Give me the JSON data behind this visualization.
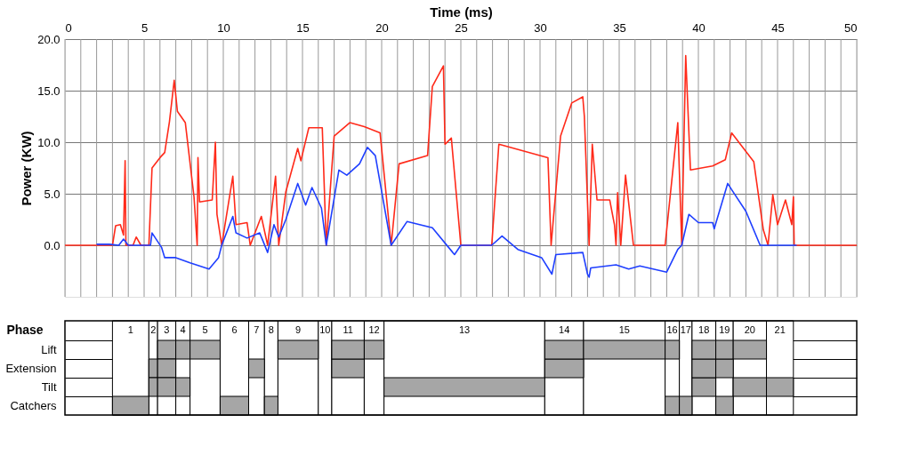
{
  "chart_data": [
    {
      "type": "line",
      "xlabel": "Time (ms)",
      "ylabel": "Power (KW)",
      "xlim": [
        0,
        50
      ],
      "ylim": [
        -5,
        20
      ],
      "grid": true,
      "xticks": [
        0,
        {
          "value": 1,
          "label": null
        },
        {
          "value": 2,
          "label": null
        },
        {
          "value": 3,
          "label": null
        },
        {
          "value": 4,
          "label": null
        },
        5,
        {
          "value": 6,
          "label": null
        },
        {
          "value": 7,
          "label": null
        },
        {
          "value": 8,
          "label": null
        },
        {
          "value": 9,
          "label": null
        },
        10,
        {
          "value": 11,
          "label": null
        },
        {
          "value": 12,
          "label": null
        },
        {
          "value": 13,
          "label": null
        },
        {
          "value": 14,
          "label": null
        },
        15,
        {
          "value": 16,
          "label": null
        },
        {
          "value": 17,
          "label": null
        },
        {
          "value": 18,
          "label": null
        },
        {
          "value": 19,
          "label": null
        },
        20,
        {
          "value": 21,
          "label": null
        },
        {
          "value": 22,
          "label": null
        },
        {
          "value": 23,
          "label": null
        },
        {
          "value": 24,
          "label": null
        },
        25,
        {
          "value": 26,
          "label": null
        },
        {
          "value": 27,
          "label": null
        },
        {
          "value": 28,
          "label": null
        },
        {
          "value": 29,
          "label": null
        },
        30,
        {
          "value": 31,
          "label": null
        },
        {
          "value": 32,
          "label": null
        },
        {
          "value": 33,
          "label": null
        },
        {
          "value": 34,
          "label": null
        },
        35,
        {
          "value": 36,
          "label": null
        },
        {
          "value": 37,
          "label": null
        },
        {
          "value": 38,
          "label": null
        },
        {
          "value": 39,
          "label": null
        },
        40,
        {
          "value": 41,
          "label": null
        },
        {
          "value": 42,
          "label": null
        },
        {
          "value": 43,
          "label": null
        },
        {
          "value": 44,
          "label": null
        },
        45,
        {
          "value": 46,
          "label": null
        },
        {
          "value": 47,
          "label": null
        },
        {
          "value": 48,
          "label": null
        },
        {
          "value": 49,
          "label": null
        },
        50
      ],
      "yticks": [
        {
          "value": 0,
          "label": "0.0"
        },
        {
          "value": 5,
          "label": "5.0"
        },
        {
          "value": 10,
          "label": "10.0"
        },
        {
          "value": 15,
          "label": "15.0"
        },
        {
          "value": 20,
          "label": "20.0"
        }
      ],
      "series": [
        {
          "color": "#ff2a1a",
          "x": [
            0,
            3.0,
            3.2,
            3.5,
            3.7,
            3.8,
            3.85,
            4.3,
            4.5,
            4.8,
            5.3,
            5.5,
            6.0,
            6.3,
            6.6,
            6.9,
            7.1,
            7.6,
            8.15,
            8.35,
            8.4,
            8.5,
            9.3,
            9.5,
            9.6,
            9.9,
            10.6,
            10.8,
            11.5,
            11.7,
            12.4,
            12.8,
            13.3,
            13.5,
            13.95,
            14.7,
            14.9,
            15.4,
            16.25,
            16.5,
            17.0,
            18.0,
            18.9,
            19.9,
            20.6,
            21.1,
            22.9,
            23.2,
            23.9,
            24.0,
            24.4,
            25.0,
            26.95,
            27.4,
            30.5,
            30.7,
            31.3,
            32.0,
            32.7,
            32.8,
            33.1,
            33.3,
            33.6,
            34.4,
            34.7,
            34.8,
            34.9,
            35.1,
            35.4,
            35.9,
            37.9,
            38.1,
            38.7,
            38.95,
            39.2,
            39.5,
            40.9,
            41.7,
            42.1,
            43.5,
            44.1,
            44.4,
            44.7,
            45.0,
            45.5,
            45.9,
            46.0,
            46.05,
            50
          ],
          "values": [
            0,
            0,
            1.9,
            2.0,
            1.0,
            8.2,
            0,
            0,
            0.8,
            0,
            0,
            7.5,
            8.5,
            9.0,
            12.0,
            16.0,
            13.0,
            11.9,
            4.7,
            0,
            8.5,
            4.2,
            4.4,
            10.0,
            3.0,
            0,
            6.7,
            2.0,
            2.2,
            0,
            2.8,
            0,
            6.7,
            0,
            5.2,
            9.4,
            8.2,
            11.4,
            11.4,
            0,
            10.6,
            11.9,
            11.5,
            10.9,
            0,
            7.9,
            8.7,
            15.4,
            17.4,
            9.8,
            10.4,
            0,
            0,
            9.8,
            8.5,
            0,
            10.6,
            13.8,
            14.4,
            12.5,
            0,
            9.8,
            4.4,
            4.4,
            2.0,
            0,
            5.1,
            0,
            6.8,
            0,
            0,
            3.0,
            11.9,
            0,
            18.4,
            7.3,
            7.7,
            8.3,
            10.9,
            8.1,
            1.5,
            0,
            4.9,
            2.0,
            4.4,
            2.0,
            4.7,
            0,
            0
          ]
        },
        {
          "color": "#1f3fff",
          "x": [
            2.0,
            2.8,
            3.4,
            3.7,
            4.0,
            5.4,
            5.5,
            6.1,
            6.3,
            7.0,
            7.9,
            9.1,
            9.7,
            9.9,
            10.6,
            10.8,
            11.5,
            12.3,
            12.8,
            13.2,
            13.5,
            13.95,
            14.7,
            15.2,
            15.6,
            16.2,
            16.5,
            17.3,
            17.8,
            18.6,
            19.1,
            19.6,
            20.6,
            21.6,
            23.2,
            24.6,
            25.0,
            26.95,
            27.6,
            28.6,
            30.1,
            30.75,
            31.0,
            32.7,
            33.0,
            33.1,
            33.2,
            34.8,
            35.6,
            36.3,
            38.0,
            38.7,
            38.95,
            39.4,
            40.0,
            40.9,
            41.0,
            41.85,
            42.1,
            43.0,
            43.9,
            46.2
          ],
          "values": [
            0.1,
            0.1,
            0,
            0.6,
            0,
            0,
            1.2,
            -0.2,
            -1.2,
            -1.2,
            -1.7,
            -2.3,
            -1.2,
            0,
            2.8,
            1.2,
            0.7,
            1.2,
            -0.7,
            2.0,
            0.8,
            2.5,
            6.0,
            3.9,
            5.6,
            3.6,
            0,
            7.3,
            6.8,
            7.9,
            9.5,
            8.7,
            0,
            2.3,
            1.7,
            -0.9,
            0,
            0,
            0.9,
            -0.4,
            -1.2,
            -2.8,
            -0.9,
            -0.7,
            -2.8,
            -3.1,
            -2.2,
            -1.9,
            -2.3,
            -2.0,
            -2.6,
            -0.4,
            0,
            3.0,
            2.2,
            2.2,
            1.6,
            6.0,
            5.4,
            3.3,
            0,
            0
          ]
        }
      ]
    },
    {
      "type": "bar",
      "orientation": "horizontal",
      "xlabel": "Phase",
      "tick_labels": "y",
      "xlim": [
        0,
        50
      ],
      "categories": [
        "Lift",
        "Extension",
        "Tilt",
        "Catchers"
      ],
      "series": [
        {
          "color": "#a6a6a6",
          "values": [
            1.15,
            0.55,
            0.55,
            2.3
          ],
          "base": [
            5.85,
            5.3,
            5.3,
            3.0
          ]
        },
        {
          "color": "#a6a6a6",
          "values": [
            0.9,
            1.15,
            1.15,
            1.8
          ],
          "base": [
            7.0,
            5.85,
            5.85,
            9.8
          ]
        },
        {
          "color": "#a6a6a6",
          "values": [
            1.9,
            1.0,
            0.9,
            0.85
          ],
          "base": [
            7.9,
            11.6,
            7.0,
            12.6
          ]
        },
        {
          "color": "#a6a6a6",
          "values": [
            2.55,
            2.05,
            10.15,
            0.9
          ],
          "base": [
            13.45,
            16.85,
            20.15,
            37.9
          ]
        },
        {
          "color": "#a6a6a6",
          "values": [
            2.05,
            2.45,
            1.5,
            0.8
          ],
          "base": [
            16.85,
            30.3,
            39.6,
            38.8
          ]
        },
        {
          "color": "#a6a6a6",
          "values": [
            1.25,
            1.5,
            2.1,
            1.1
          ],
          "base": [
            18.9,
            39.6,
            42.2,
            41.1
          ]
        },
        {
          "color": "#a6a6a6",
          "values": [
            2.45,
            1.1,
            1.7,
            null
          ],
          "base": [
            30.3,
            41.1,
            44.3,
            null
          ]
        },
        {
          "color": "#a6a6a6",
          "values": [
            5.15,
            null,
            null,
            null
          ],
          "base": [
            32.75,
            null,
            null,
            null
          ]
        },
        {
          "color": "#a6a6a6",
          "values": [
            0.9,
            null,
            null,
            null
          ],
          "base": [
            37.9,
            null,
            null,
            null
          ]
        },
        {
          "color": "#a6a6a6",
          "values": [
            1.5,
            null,
            null,
            null
          ],
          "base": [
            39.6,
            null,
            null,
            null
          ]
        },
        {
          "color": "#a6a6a6",
          "values": [
            1.1,
            null,
            null,
            null
          ],
          "base": [
            41.1,
            null,
            null,
            null
          ]
        },
        {
          "color": "#a6a6a6",
          "values": [
            2.1,
            null,
            null,
            null
          ],
          "base": [
            42.2,
            null,
            null,
            null
          ]
        }
      ],
      "bands": [
        {
          "axis": "x",
          "from": 3.0,
          "to": 5.3,
          "label": "1",
          "color": "#ffffff"
        },
        {
          "axis": "x",
          "from": 5.3,
          "to": 5.85,
          "label": "2",
          "color": "#ffffff"
        },
        {
          "axis": "x",
          "from": 5.85,
          "to": 7.0,
          "label": "3",
          "color": "#ffffff"
        },
        {
          "axis": "x",
          "from": 7.0,
          "to": 7.9,
          "label": "4",
          "color": "#ffffff"
        },
        {
          "axis": "x",
          "from": 7.9,
          "to": 9.8,
          "label": "5",
          "color": "#ffffff"
        },
        {
          "axis": "x",
          "from": 9.8,
          "to": 11.6,
          "label": "6",
          "color": "#ffffff"
        },
        {
          "axis": "x",
          "from": 11.6,
          "to": 12.6,
          "label": "7",
          "color": "#ffffff"
        },
        {
          "axis": "x",
          "from": 12.6,
          "to": 13.45,
          "label": "8",
          "color": "#ffffff"
        },
        {
          "axis": "x",
          "from": 13.45,
          "to": 16.0,
          "label": "9",
          "color": "#ffffff"
        },
        {
          "axis": "x",
          "from": 16.0,
          "to": 16.85,
          "label": "10",
          "color": "#ffffff"
        },
        {
          "axis": "x",
          "from": 16.85,
          "to": 18.9,
          "label": "11",
          "color": "#ffffff"
        },
        {
          "axis": "x",
          "from": 18.9,
          "to": 20.15,
          "label": "12",
          "color": "#ffffff"
        },
        {
          "axis": "x",
          "from": 20.15,
          "to": 30.3,
          "label": "13",
          "color": "#ffffff"
        },
        {
          "axis": "x",
          "from": 30.3,
          "to": 32.75,
          "label": "14",
          "color": "#ffffff"
        },
        {
          "axis": "x",
          "from": 32.75,
          "to": 37.9,
          "label": "15",
          "color": "#ffffff"
        },
        {
          "axis": "x",
          "from": 37.9,
          "to": 38.8,
          "label": "16",
          "color": "#ffffff"
        },
        {
          "axis": "x",
          "from": 38.8,
          "to": 39.6,
          "label": "17",
          "color": "#ffffff"
        },
        {
          "axis": "x",
          "from": 39.6,
          "to": 41.1,
          "label": "18",
          "color": "#ffffff"
        },
        {
          "axis": "x",
          "from": 41.1,
          "to": 42.2,
          "label": "19",
          "color": "#ffffff"
        },
        {
          "axis": "x",
          "from": 42.2,
          "to": 44.3,
          "label": "20",
          "color": "#ffffff"
        },
        {
          "axis": "x",
          "from": 44.3,
          "to": 46.0,
          "label": "21",
          "color": "#ffffff"
        }
      ]
    }
  ]
}
